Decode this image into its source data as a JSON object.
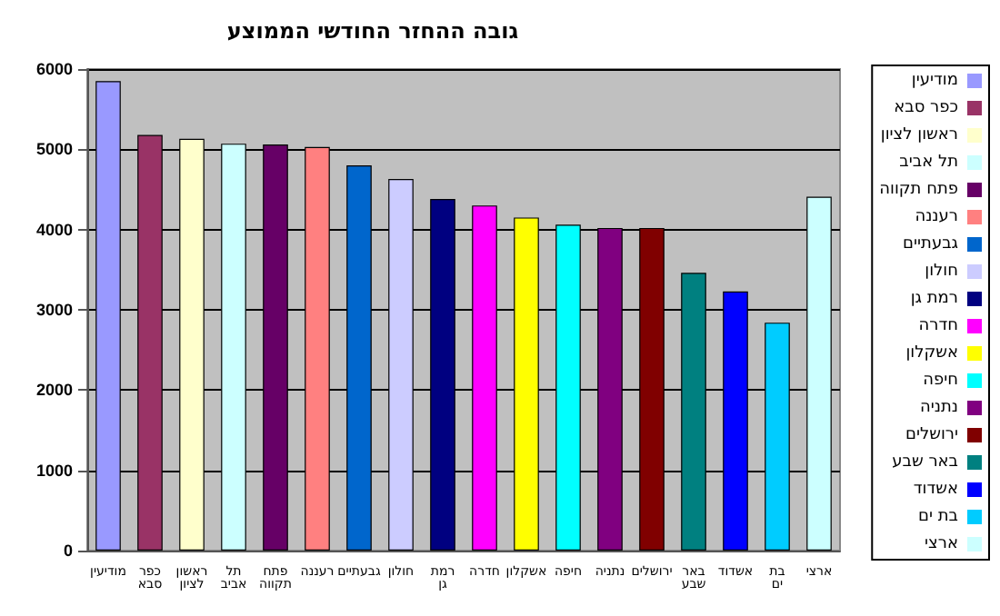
{
  "chart_data": {
    "type": "bar",
    "title": "גובה ההחזר החודשי הממוצע",
    "categories": [
      "מודיעין",
      "כפר סבא",
      "ראשון לציון",
      "תל אביב",
      "פתח תקווה",
      "רעננה",
      "גבעתיים",
      "חולון",
      "רמת גן",
      "חדרה",
      "אשקלון",
      "חיפה",
      "נתניה",
      "ירושלים",
      "באר שבע",
      "אשדוד",
      "בת ים",
      "ארצי"
    ],
    "series": [
      {
        "name": "מודיעין",
        "color": "#9999ff",
        "values": [
          5850,
          null,
          null,
          null,
          null,
          null,
          null,
          null,
          null,
          null,
          null,
          null,
          null,
          null,
          null,
          null,
          null,
          null
        ]
      },
      {
        "name": "כפר סבא",
        "color": "#993366",
        "values": [
          null,
          5180,
          null,
          null,
          null,
          null,
          null,
          null,
          null,
          null,
          null,
          null,
          null,
          null,
          null,
          null,
          null,
          null
        ]
      },
      {
        "name": "ראשון לציון",
        "color": "#ffffcc",
        "values": [
          null,
          null,
          5130,
          null,
          null,
          null,
          null,
          null,
          null,
          null,
          null,
          null,
          null,
          null,
          null,
          null,
          null,
          null
        ]
      },
      {
        "name": "תל אביב",
        "color": "#ccffff",
        "values": [
          null,
          null,
          null,
          5070,
          null,
          null,
          null,
          null,
          null,
          null,
          null,
          null,
          null,
          null,
          null,
          null,
          null,
          null
        ]
      },
      {
        "name": "פתח תקווה",
        "color": "#660066",
        "values": [
          null,
          null,
          null,
          null,
          5060,
          null,
          null,
          null,
          null,
          null,
          null,
          null,
          null,
          null,
          null,
          null,
          null,
          null
        ]
      },
      {
        "name": "רעננה",
        "color": "#ff8080",
        "values": [
          null,
          null,
          null,
          null,
          null,
          5030,
          null,
          null,
          null,
          null,
          null,
          null,
          null,
          null,
          null,
          null,
          null,
          null
        ]
      },
      {
        "name": "גבעתיים",
        "color": "#0066cc",
        "values": [
          null,
          null,
          null,
          null,
          null,
          null,
          4800,
          null,
          null,
          null,
          null,
          null,
          null,
          null,
          null,
          null,
          null,
          null
        ]
      },
      {
        "name": "חולון",
        "color": "#ccccff",
        "values": [
          null,
          null,
          null,
          null,
          null,
          null,
          null,
          4630,
          null,
          null,
          null,
          null,
          null,
          null,
          null,
          null,
          null,
          null
        ]
      },
      {
        "name": "רמת גן",
        "color": "#000080",
        "values": [
          null,
          null,
          null,
          null,
          null,
          null,
          null,
          null,
          4380,
          null,
          null,
          null,
          null,
          null,
          null,
          null,
          null,
          null
        ]
      },
      {
        "name": "חדרה",
        "color": "#ff00ff",
        "values": [
          null,
          null,
          null,
          null,
          null,
          null,
          null,
          null,
          null,
          4300,
          null,
          null,
          null,
          null,
          null,
          null,
          null,
          null
        ]
      },
      {
        "name": "אשקלון",
        "color": "#ffff00",
        "values": [
          null,
          null,
          null,
          null,
          null,
          null,
          null,
          null,
          null,
          null,
          4150,
          null,
          null,
          null,
          null,
          null,
          null,
          null
        ]
      },
      {
        "name": "חיפה",
        "color": "#00ffff",
        "values": [
          null,
          null,
          null,
          null,
          null,
          null,
          null,
          null,
          null,
          null,
          null,
          4060,
          null,
          null,
          null,
          null,
          null,
          null
        ]
      },
      {
        "name": "נתניה",
        "color": "#800080",
        "values": [
          null,
          null,
          null,
          null,
          null,
          null,
          null,
          null,
          null,
          null,
          null,
          null,
          4020,
          null,
          null,
          null,
          null,
          null
        ]
      },
      {
        "name": "ירושלים",
        "color": "#800000",
        "values": [
          null,
          null,
          null,
          null,
          null,
          null,
          null,
          null,
          null,
          null,
          null,
          null,
          null,
          4020,
          null,
          null,
          null,
          null
        ]
      },
      {
        "name": "באר שבע",
        "color": "#008080",
        "values": [
          null,
          null,
          null,
          null,
          null,
          null,
          null,
          null,
          null,
          null,
          null,
          null,
          null,
          null,
          3460,
          null,
          null,
          null
        ]
      },
      {
        "name": "אשדוד",
        "color": "#0000ff",
        "values": [
          null,
          null,
          null,
          null,
          null,
          null,
          null,
          null,
          null,
          null,
          null,
          null,
          null,
          null,
          null,
          3230,
          null,
          null
        ]
      },
      {
        "name": "בת ים",
        "color": "#00ccff",
        "values": [
          null,
          null,
          null,
          null,
          null,
          null,
          null,
          null,
          null,
          null,
          null,
          null,
          null,
          null,
          null,
          null,
          2840,
          null
        ]
      },
      {
        "name": "ארצי",
        "color": "#ccffff",
        "values": [
          null,
          null,
          null,
          null,
          null,
          null,
          null,
          null,
          null,
          null,
          null,
          null,
          null,
          null,
          null,
          null,
          null,
          4410
        ]
      }
    ],
    "stacked": true,
    "ylim": [
      0,
      6000
    ],
    "yticks": [
      0,
      1000,
      2000,
      3000,
      4000,
      5000,
      6000
    ],
    "grid": "y",
    "legend": "right"
  }
}
